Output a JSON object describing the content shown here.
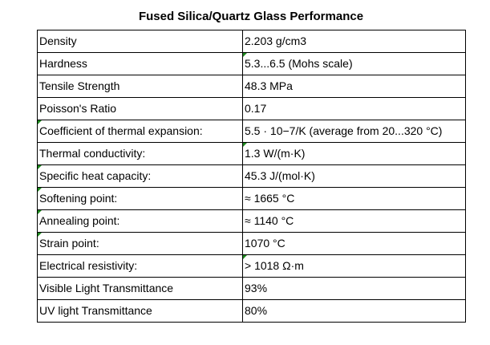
{
  "title": "Fused Silica/Quartz Glass Performance",
  "rows": [
    {
      "property": "Density",
      "value": "2.203 g/cm3"
    },
    {
      "property": "Hardness",
      "value": " 5.3...6.5 (Mohs scale)"
    },
    {
      "property": "Tensile Strength",
      "value": "48.3 MPa"
    },
    {
      "property": "Poisson's Ratio",
      "value": "0.17"
    },
    {
      "property": "Coefficient of thermal expansion:",
      "value": "5.5 · 10−7/K (average from 20...320 °C)"
    },
    {
      "property": "Thermal conductivity:",
      "value": " 1.3 W/(m·K)"
    },
    {
      "property": "Specific heat capacity:",
      "value": "45.3 J/(mol·K)"
    },
    {
      "property": "Softening point:",
      "value": "≈ 1665 °C"
    },
    {
      "property": "Annealing point:",
      "value": "≈ 1140 °C"
    },
    {
      "property": "Strain point:",
      "value": "1070 °C"
    },
    {
      "property": "Electrical resistivity:",
      "value": " > 1018 Ω·m"
    },
    {
      "property": "Visible Light Transmittance",
      "value": "93%"
    },
    {
      "property": "UV light Transmittance",
      "value": "80%"
    }
  ],
  "colors": {
    "cell_indicator": "#1e8a1e",
    "border": "#000000"
  }
}
